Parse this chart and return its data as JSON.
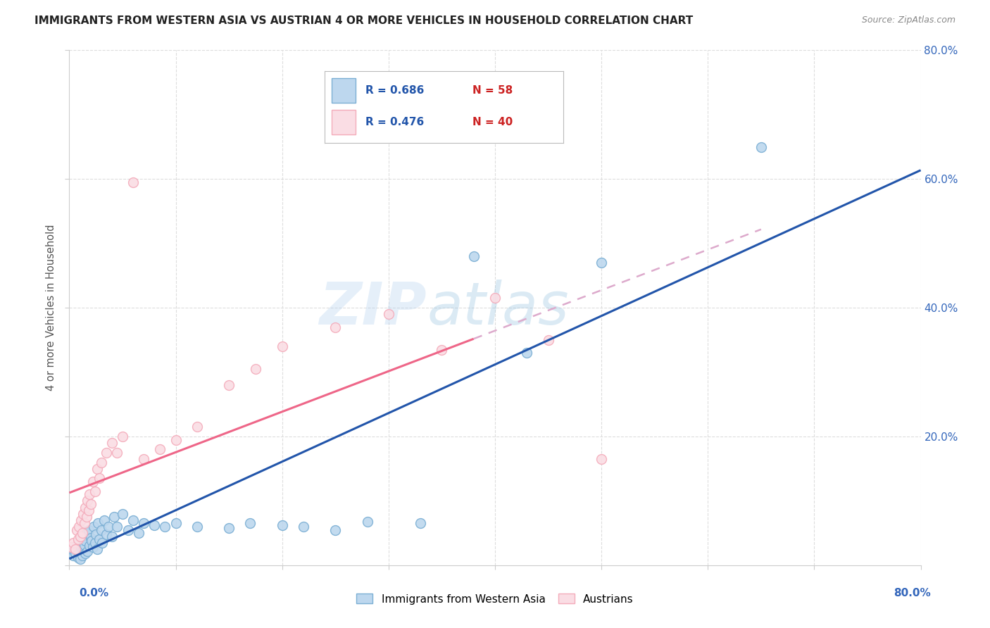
{
  "title": "IMMIGRANTS FROM WESTERN ASIA VS AUSTRIAN 4 OR MORE VEHICLES IN HOUSEHOLD CORRELATION CHART",
  "source": "Source: ZipAtlas.com",
  "ylabel": "4 or more Vehicles in Household",
  "xlim": [
    0,
    0.8
  ],
  "ylim": [
    0,
    0.8
  ],
  "watermark": "ZIPatlas",
  "legend_blue_R": "R = 0.686",
  "legend_blue_N": "N = 58",
  "legend_pink_R": "R = 0.476",
  "legend_pink_N": "N = 40",
  "blue_scatter_color": "#7BAFD4",
  "blue_scatter_fill": "#BDD7EE",
  "pink_scatter_color": "#F4ACBB",
  "pink_scatter_fill": "#FADDE4",
  "trend_blue": "#2255AA",
  "trend_pink_solid": "#EE6688",
  "trend_pink_dash": "#DDAACC",
  "background": "#FFFFFF",
  "grid_color": "#DDDDDD",
  "blue_scatter_x": [
    0.002,
    0.004,
    0.005,
    0.006,
    0.007,
    0.008,
    0.008,
    0.009,
    0.01,
    0.01,
    0.011,
    0.012,
    0.013,
    0.013,
    0.014,
    0.015,
    0.015,
    0.016,
    0.017,
    0.018,
    0.019,
    0.02,
    0.021,
    0.022,
    0.023,
    0.024,
    0.025,
    0.026,
    0.027,
    0.028,
    0.03,
    0.031,
    0.033,
    0.035,
    0.037,
    0.04,
    0.042,
    0.045,
    0.05,
    0.055,
    0.06,
    0.065,
    0.07,
    0.08,
    0.09,
    0.1,
    0.12,
    0.15,
    0.17,
    0.2,
    0.22,
    0.25,
    0.28,
    0.33,
    0.38,
    0.43,
    0.5,
    0.65
  ],
  "blue_scatter_y": [
    0.02,
    0.015,
    0.025,
    0.018,
    0.03,
    0.012,
    0.022,
    0.035,
    0.01,
    0.04,
    0.028,
    0.015,
    0.045,
    0.025,
    0.032,
    0.038,
    0.018,
    0.05,
    0.022,
    0.055,
    0.03,
    0.042,
    0.038,
    0.028,
    0.06,
    0.035,
    0.048,
    0.025,
    0.065,
    0.04,
    0.055,
    0.035,
    0.07,
    0.048,
    0.06,
    0.045,
    0.075,
    0.06,
    0.08,
    0.055,
    0.07,
    0.05,
    0.065,
    0.062,
    0.06,
    0.065,
    0.06,
    0.058,
    0.065,
    0.062,
    0.06,
    0.055,
    0.068,
    0.065,
    0.48,
    0.33,
    0.47,
    0.65
  ],
  "pink_scatter_x": [
    0.002,
    0.004,
    0.006,
    0.007,
    0.008,
    0.009,
    0.01,
    0.011,
    0.012,
    0.013,
    0.014,
    0.015,
    0.016,
    0.017,
    0.018,
    0.019,
    0.02,
    0.022,
    0.024,
    0.026,
    0.028,
    0.03,
    0.035,
    0.04,
    0.045,
    0.05,
    0.06,
    0.07,
    0.085,
    0.1,
    0.12,
    0.15,
    0.175,
    0.2,
    0.25,
    0.3,
    0.35,
    0.4,
    0.45,
    0.5
  ],
  "pink_scatter_y": [
    0.028,
    0.035,
    0.025,
    0.055,
    0.04,
    0.06,
    0.045,
    0.07,
    0.05,
    0.08,
    0.065,
    0.09,
    0.075,
    0.1,
    0.085,
    0.11,
    0.095,
    0.13,
    0.115,
    0.15,
    0.135,
    0.16,
    0.175,
    0.19,
    0.175,
    0.2,
    0.595,
    0.165,
    0.18,
    0.195,
    0.215,
    0.28,
    0.305,
    0.34,
    0.37,
    0.39,
    0.335,
    0.415,
    0.35,
    0.165
  ]
}
